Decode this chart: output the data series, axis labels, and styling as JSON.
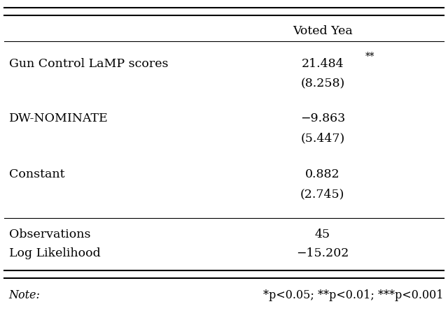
{
  "title_col": "Voted Yea",
  "rows": [
    {
      "label": "Gun Control LaMP scores",
      "coef_base": "21.484",
      "coef_stars": "**",
      "se": "(8.258)",
      "has_stars": true
    },
    {
      "label": "DW-NOMINATE",
      "coef_base": "−9.863",
      "coef_stars": "",
      "se": "(5.447)",
      "has_stars": false
    },
    {
      "label": "Constant",
      "coef_base": "0.882",
      "coef_stars": "",
      "se": "(2.745)",
      "has_stars": false
    }
  ],
  "stats": [
    {
      "label": "Observations",
      "value": "45"
    },
    {
      "label": "Log Likelihood",
      "value": "−15.202"
    }
  ],
  "note_label": "Note:",
  "note_text": "*p<0.05; **p<0.01; ***p<0.001",
  "bg_color": "#ffffff",
  "text_color": "#000000",
  "font_size": 12.5,
  "note_font_size": 11.5,
  "lw_thick": 1.5,
  "lw_thin": 0.8
}
